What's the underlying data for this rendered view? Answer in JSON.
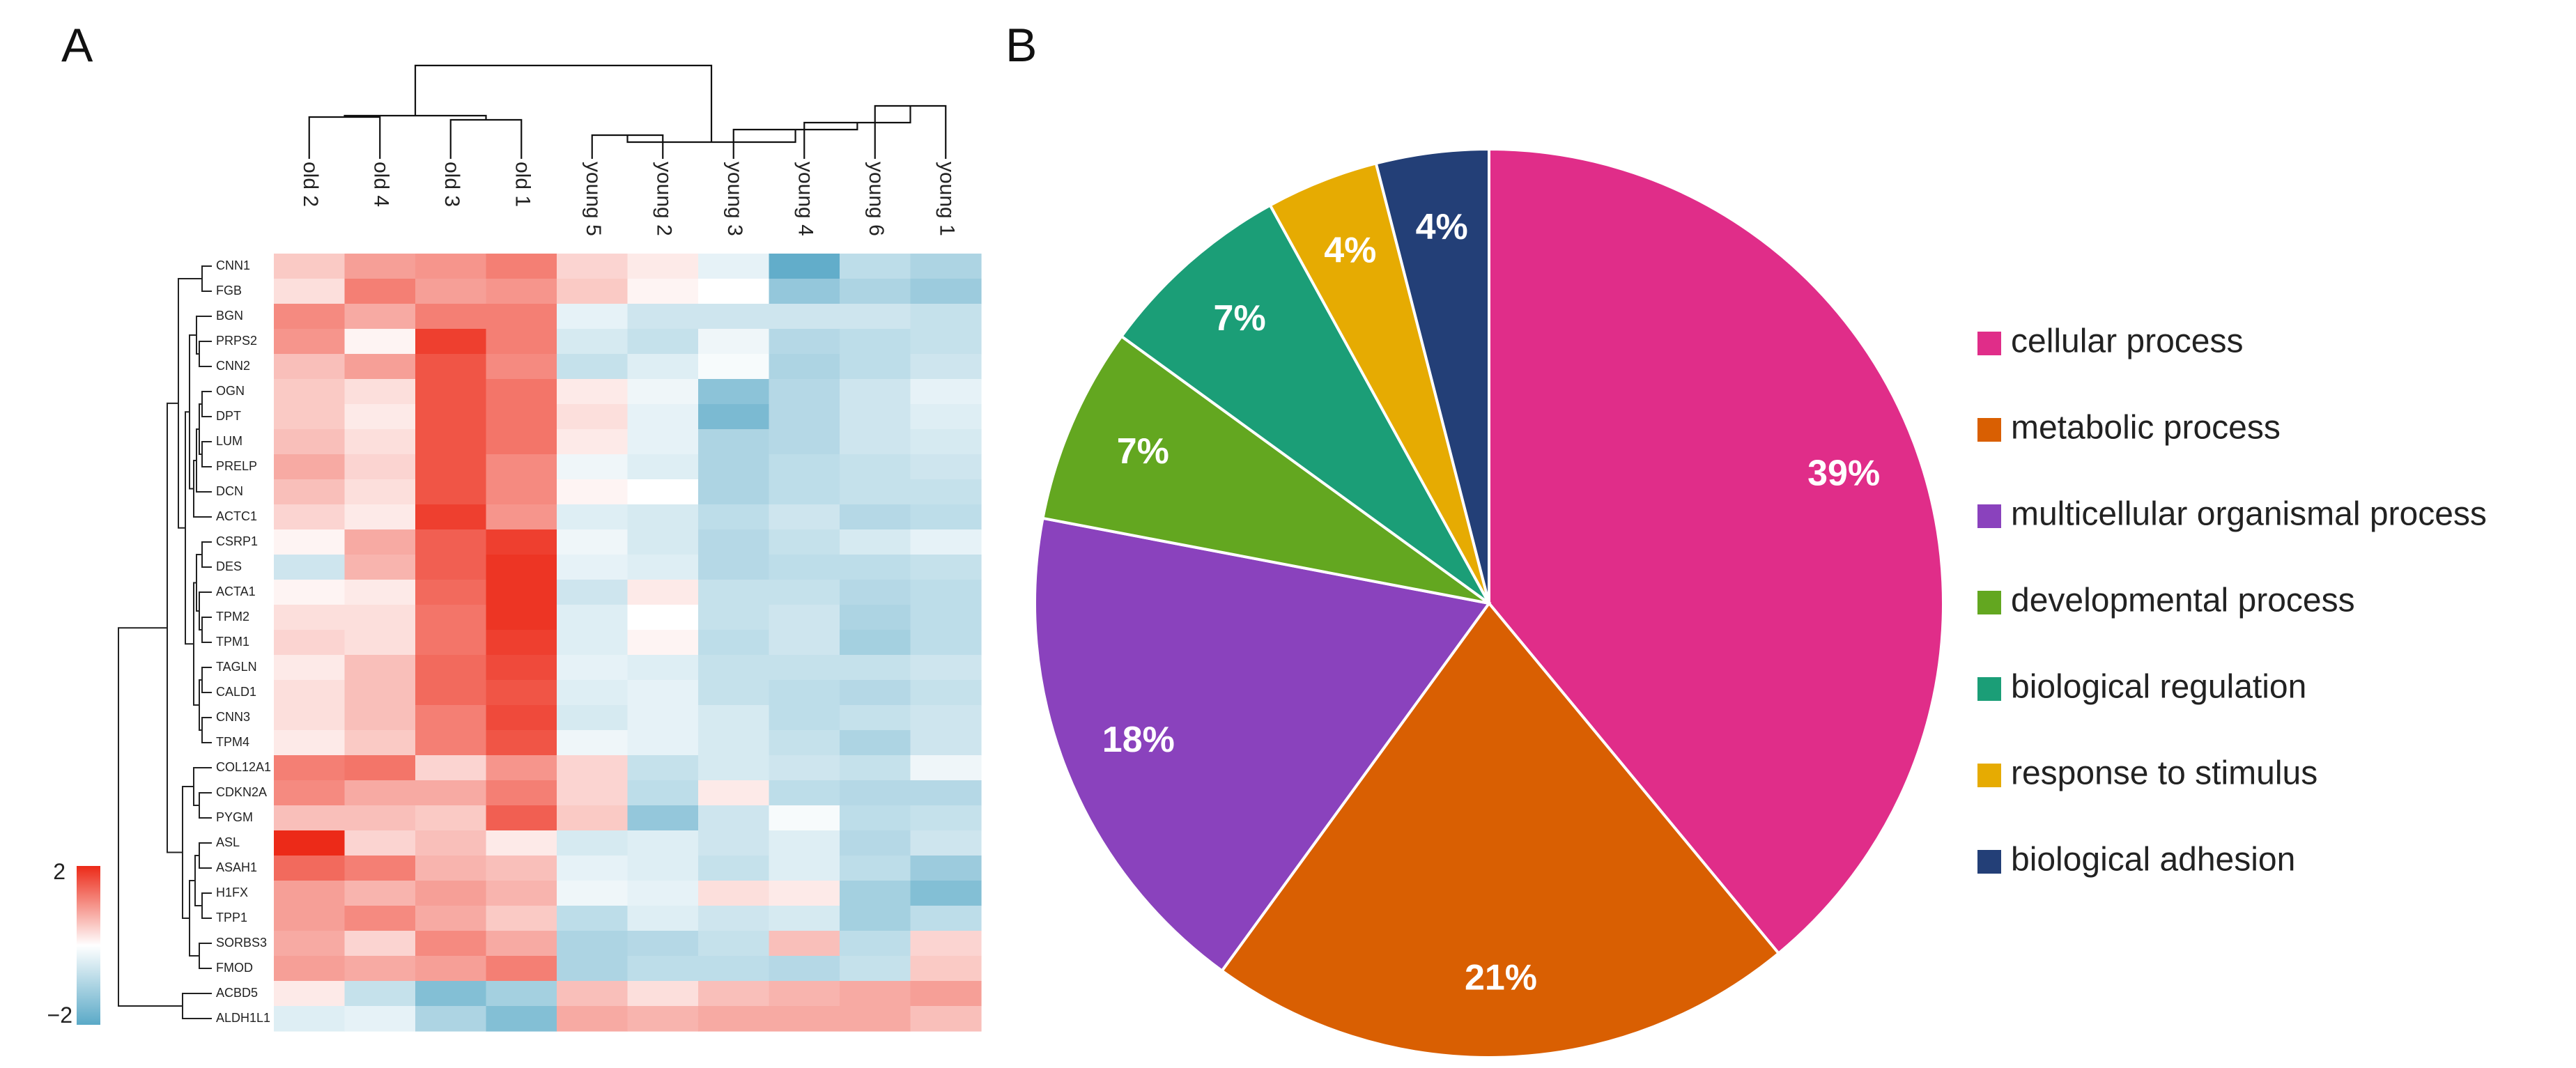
{
  "panel_a_label": "A",
  "panel_b_label": "B",
  "chart_data": [
    {
      "type": "heatmap",
      "title": "",
      "columns": [
        "old 2",
        "old 4",
        "old 3",
        "old 1",
        "young 5",
        "young 2",
        "young 3",
        "young 4",
        "young 6",
        "young 1"
      ],
      "rows": [
        "CNN1",
        "FGB",
        "BGN",
        "PRPS2",
        "CNN2",
        "OGN",
        "DPT",
        "LUM",
        "PRELP",
        "DCN",
        "ACTC1",
        "CSRP1",
        "DES",
        "ACTA1",
        "TPM2",
        "TPM1",
        "TAGLN",
        "CALD1",
        "CNN3",
        "TPM4",
        "COL12A1",
        "CDKN2A",
        "PYGM",
        "ASL",
        "ASAH1",
        "H1FX",
        "TPP1",
        "SORBS3",
        "FMOD",
        "ACBD5",
        "ALDH1L1"
      ],
      "values": [
        [
          0.5,
          0.9,
          1.0,
          1.2,
          0.4,
          0.2,
          -0.3,
          -1.9,
          -0.8,
          -1.0
        ],
        [
          0.3,
          1.2,
          0.9,
          1.0,
          0.5,
          0.1,
          0.0,
          -1.3,
          -1.0,
          -1.2
        ],
        [
          1.1,
          0.8,
          1.2,
          1.2,
          -0.3,
          -0.6,
          -0.6,
          -0.6,
          -0.6,
          -0.7
        ],
        [
          1.0,
          0.1,
          1.8,
          1.2,
          -0.5,
          -0.7,
          -0.2,
          -0.9,
          -0.8,
          -0.7
        ],
        [
          0.6,
          0.9,
          1.6,
          1.1,
          -0.7,
          -0.4,
          -0.1,
          -1.0,
          -0.8,
          -0.6
        ],
        [
          0.5,
          0.3,
          1.6,
          1.3,
          0.2,
          -0.2,
          -1.4,
          -0.9,
          -0.6,
          -0.3
        ],
        [
          0.5,
          0.2,
          1.6,
          1.3,
          0.3,
          -0.3,
          -1.6,
          -0.9,
          -0.6,
          -0.4
        ],
        [
          0.6,
          0.3,
          1.6,
          1.3,
          0.2,
          -0.3,
          -1.0,
          -0.9,
          -0.6,
          -0.5
        ],
        [
          0.8,
          0.4,
          1.6,
          1.1,
          -0.2,
          -0.4,
          -1.0,
          -0.8,
          -0.7,
          -0.6
        ],
        [
          0.6,
          0.3,
          1.6,
          1.1,
          0.1,
          0.0,
          -1.0,
          -0.8,
          -0.7,
          -0.7
        ],
        [
          0.4,
          0.2,
          1.8,
          1.0,
          -0.4,
          -0.5,
          -0.8,
          -0.6,
          -0.9,
          -0.8
        ],
        [
          0.1,
          0.8,
          1.5,
          1.8,
          -0.2,
          -0.5,
          -0.9,
          -0.7,
          -0.5,
          -0.3
        ],
        [
          -0.6,
          0.7,
          1.5,
          1.9,
          -0.3,
          -0.4,
          -0.9,
          -0.8,
          -0.8,
          -0.7
        ],
        [
          0.1,
          0.2,
          1.4,
          1.9,
          -0.6,
          0.2,
          -0.7,
          -0.7,
          -0.9,
          -0.8
        ],
        [
          0.3,
          0.3,
          1.3,
          1.9,
          -0.4,
          0.0,
          -0.7,
          -0.6,
          -1.0,
          -0.8
        ],
        [
          0.4,
          0.3,
          1.3,
          1.8,
          -0.4,
          0.1,
          -0.8,
          -0.6,
          -1.1,
          -0.8
        ],
        [
          0.2,
          0.6,
          1.4,
          1.7,
          -0.3,
          -0.4,
          -0.7,
          -0.7,
          -0.7,
          -0.6
        ],
        [
          0.3,
          0.6,
          1.4,
          1.6,
          -0.4,
          -0.3,
          -0.7,
          -0.8,
          -0.9,
          -0.7
        ],
        [
          0.3,
          0.6,
          1.2,
          1.7,
          -0.5,
          -0.3,
          -0.5,
          -0.8,
          -0.7,
          -0.6
        ],
        [
          0.2,
          0.5,
          1.2,
          1.6,
          -0.2,
          -0.3,
          -0.5,
          -0.7,
          -1.0,
          -0.6
        ],
        [
          1.2,
          1.3,
          0.4,
          1.0,
          0.4,
          -0.7,
          -0.5,
          -0.6,
          -0.7,
          -0.2
        ],
        [
          1.1,
          0.8,
          0.8,
          1.2,
          0.4,
          -0.8,
          0.2,
          -0.8,
          -0.9,
          -0.9
        ],
        [
          0.6,
          0.6,
          0.5,
          1.5,
          0.5,
          -1.3,
          -0.6,
          -0.1,
          -0.8,
          -0.7
        ],
        [
          2.0,
          0.4,
          0.6,
          0.2,
          -0.5,
          -0.4,
          -0.6,
          -0.4,
          -0.9,
          -0.6
        ],
        [
          1.4,
          1.2,
          0.7,
          0.6,
          -0.3,
          -0.4,
          -0.7,
          -0.4,
          -0.8,
          -1.2
        ],
        [
          0.9,
          0.7,
          0.9,
          0.7,
          -0.2,
          -0.3,
          0.3,
          0.2,
          -1.1,
          -1.5
        ],
        [
          0.9,
          1.1,
          0.8,
          0.5,
          -0.8,
          -0.4,
          -0.6,
          -0.5,
          -1.1,
          -0.8
        ],
        [
          0.8,
          0.4,
          1.1,
          0.8,
          -1.0,
          -0.9,
          -0.7,
          0.6,
          -0.8,
          0.4
        ],
        [
          0.9,
          0.8,
          0.9,
          1.2,
          -1.0,
          -0.8,
          -0.8,
          -0.9,
          -0.7,
          0.5
        ],
        [
          0.2,
          -0.7,
          -1.5,
          -1.1,
          0.6,
          0.3,
          0.6,
          0.7,
          0.8,
          0.9
        ],
        [
          -0.4,
          -0.3,
          -1.0,
          -1.5,
          0.8,
          0.7,
          0.8,
          0.8,
          0.8,
          0.6
        ]
      ],
      "color_scale": {
        "min": -2,
        "max": 2,
        "low_color": "#5aa9c7",
        "mid_color": "#ffffff",
        "high_color": "#ec2a18",
        "ticks": [
          "2",
          "−2"
        ]
      },
      "xlabel": "",
      "ylabel": ""
    },
    {
      "type": "pie",
      "title": "",
      "categories": [
        "cellular process",
        "metabolic process",
        "multicellular organismal process",
        "developmental process",
        "biological regulation",
        "response to stimulus",
        "biological adhesion"
      ],
      "values": [
        39,
        21,
        18,
        7,
        7,
        4,
        4
      ],
      "labels": [
        "39%",
        "21%",
        "18%",
        "7%",
        "7%",
        "4%",
        "4%"
      ],
      "colors": [
        "#e02d89",
        "#d95f02",
        "#8a42bd",
        "#63a720",
        "#1b9e77",
        "#e6ab02",
        "#233f77"
      ],
      "legend_position": "right"
    }
  ]
}
